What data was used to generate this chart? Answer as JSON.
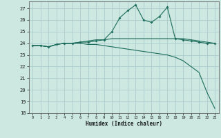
{
  "x": [
    0,
    1,
    2,
    3,
    4,
    5,
    6,
    7,
    8,
    9,
    10,
    11,
    12,
    13,
    14,
    15,
    16,
    17,
    18,
    19,
    20,
    21,
    22,
    23
  ],
  "line_humidex": [
    23.8,
    23.8,
    23.7,
    23.9,
    24.0,
    24.0,
    24.1,
    24.1,
    24.2,
    24.3,
    25.0,
    26.2,
    26.8,
    27.3,
    26.0,
    25.8,
    26.3,
    27.1,
    24.4,
    24.3,
    24.2,
    24.1,
    24.0,
    24.0
  ],
  "line_max": [
    23.8,
    23.8,
    23.7,
    23.9,
    24.0,
    24.0,
    24.1,
    24.2,
    24.3,
    24.3,
    24.4,
    24.4,
    24.4,
    24.4,
    24.4,
    24.4,
    24.4,
    24.4,
    24.4,
    24.4,
    24.3,
    24.2,
    24.1,
    24.0
  ],
  "line_min": [
    23.8,
    23.8,
    23.7,
    23.9,
    24.0,
    24.0,
    24.0,
    23.9,
    23.9,
    23.8,
    23.7,
    23.6,
    23.5,
    23.4,
    23.3,
    23.2,
    23.1,
    23.0,
    22.8,
    22.5,
    22.0,
    21.5,
    19.8,
    18.4
  ],
  "bg_color": "#cce8e0",
  "grid_color": "#aacccc",
  "line_color": "#1a6b5a",
  "xlabel": "Humidex (Indice chaleur)",
  "ylim": [
    18,
    27.6
  ],
  "xlim": [
    -0.5,
    23.5
  ],
  "yticks": [
    18,
    19,
    20,
    21,
    22,
    23,
    24,
    25,
    26,
    27
  ],
  "xticks": [
    0,
    1,
    2,
    3,
    4,
    5,
    6,
    7,
    8,
    9,
    10,
    11,
    12,
    13,
    14,
    15,
    16,
    17,
    18,
    19,
    20,
    21,
    22,
    23
  ]
}
